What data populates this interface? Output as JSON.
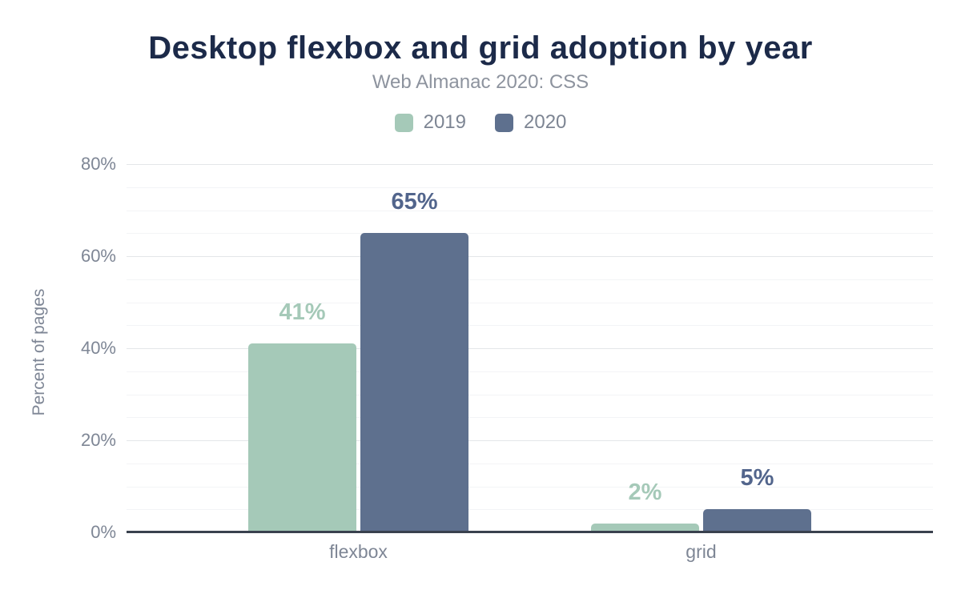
{
  "chart_data": {
    "type": "bar",
    "title": "Desktop flexbox and grid adoption by year",
    "subtitle": "Web Almanac 2020: CSS",
    "categories": [
      "flexbox",
      "grid"
    ],
    "series": [
      {
        "name": "2019",
        "color": "#a5c9b8",
        "label_color": "#a5c9b8",
        "values": [
          41,
          2
        ],
        "labels": [
          "41%",
          "2%"
        ]
      },
      {
        "name": "2020",
        "color": "#5e708e",
        "label_color": "#52658c",
        "values": [
          65,
          5
        ],
        "labels": [
          "65%",
          "5%"
        ]
      }
    ],
    "xlabel": "",
    "ylabel": "Percent of pages",
    "ylim": [
      0,
      80
    ],
    "yticks": [
      0,
      20,
      40,
      60,
      80
    ],
    "ytick_labels": [
      "0%",
      "20%",
      "40%",
      "60%",
      "80%"
    ],
    "grid": "horizontal, minor every 5, major every 20",
    "legend_position": "top-center",
    "colors": {
      "title": "#1c2a49",
      "muted_text": "#7e8695",
      "axis_line": "#39414e",
      "grid_major": "#e4e6e9",
      "grid_minor": "#f3f4f6",
      "background": "#ffffff"
    }
  }
}
